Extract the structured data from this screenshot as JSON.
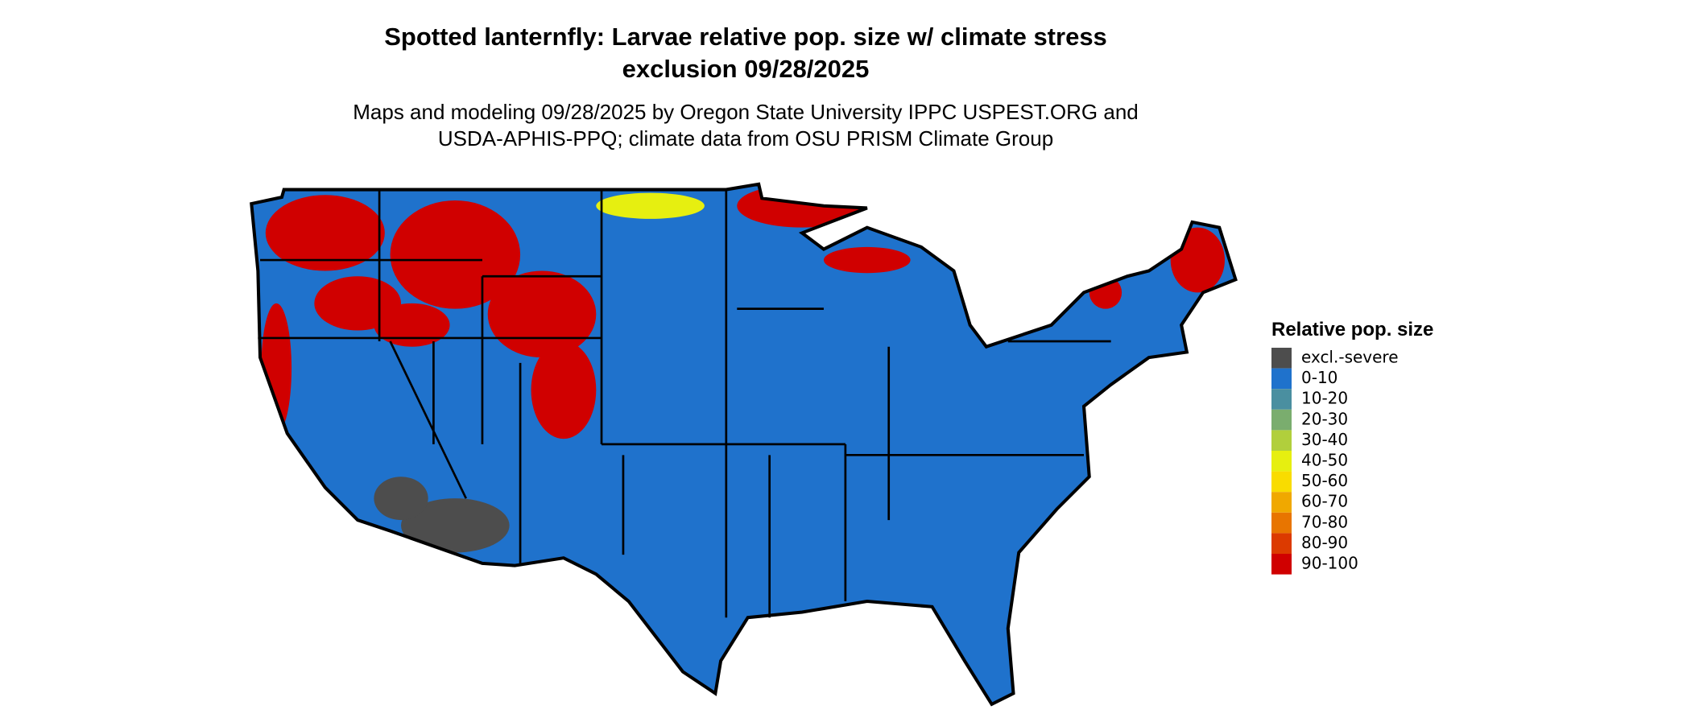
{
  "title": [
    "Spotted lanternfly: Larvae relative pop. size w/ climate stress",
    "exclusion 09/28/2025"
  ],
  "subtitle": [
    "Maps and modeling 09/28/2025 by Oregon State University IPPC USPEST.ORG and",
    "USDA-APHIS-PPQ; climate data from OSU PRISM Climate Group"
  ],
  "legend": {
    "title": "Relative pop. size",
    "items": [
      {
        "label": "excl.-severe",
        "color": "#4d4d4d"
      },
      {
        "label": "0-10",
        "color": "#1f72cc"
      },
      {
        "label": "10-20",
        "color": "#4a8fa0"
      },
      {
        "label": "20-30",
        "color": "#7aad6e"
      },
      {
        "label": "30-40",
        "color": "#b1cf3c"
      },
      {
        "label": "40-50",
        "color": "#e6ef10"
      },
      {
        "label": "50-60",
        "color": "#f9dc00"
      },
      {
        "label": "60-70",
        "color": "#f0a800"
      },
      {
        "label": "70-80",
        "color": "#e87500"
      },
      {
        "label": "80-90",
        "color": "#dc3a00"
      },
      {
        "label": "90-100",
        "color": "#d00000"
      }
    ]
  }
}
